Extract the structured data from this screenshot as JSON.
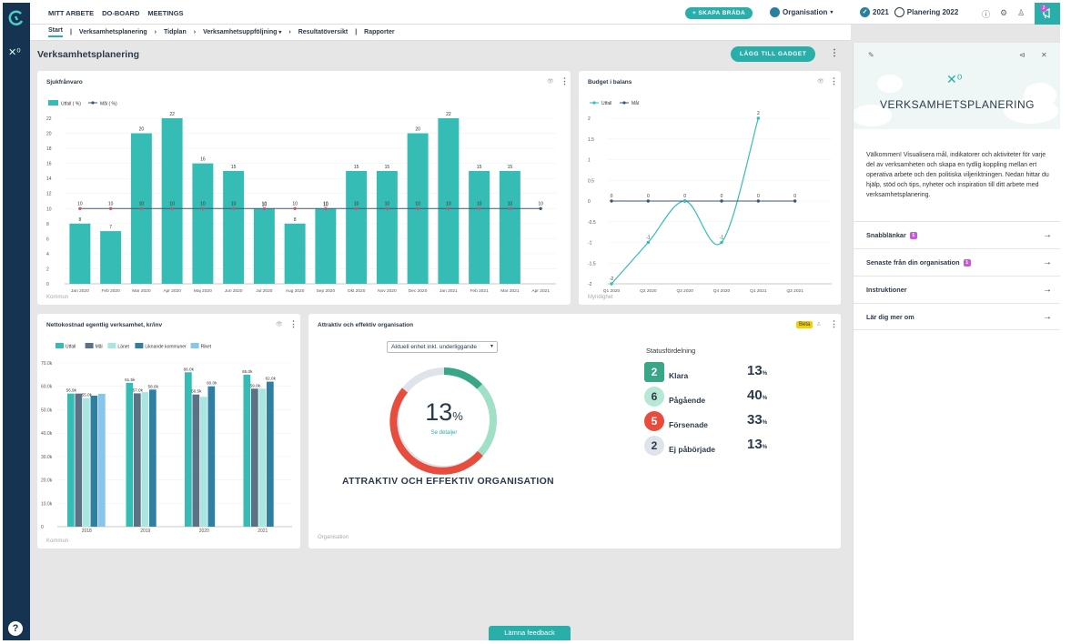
{
  "topnav": {
    "items": [
      "MITT ARBETE",
      "DO-BOARD",
      "MEETINGS"
    ],
    "create_label": "+ SKAPA BRÄDA",
    "org_label": "Organisation",
    "year_label": "2021",
    "plan_label": "Planering 2022",
    "notif_count": "2"
  },
  "subnav": {
    "items": [
      "Start",
      "Verksamhetsplanering",
      "Tidplan",
      "Verksamhetsuppföljning",
      "Resultatöversikt",
      "Rapporter"
    ]
  },
  "page": {
    "title": "Verksamhetsplanering",
    "add_gadget": "LÄGG TILL GADGET"
  },
  "cards": {
    "sick": {
      "title": "Sjukfrånvaro",
      "footer": "Kommun"
    },
    "budget": {
      "title": "Budget i balans",
      "footer": "Myndighet"
    },
    "netto": {
      "title": "Nettokostnad egentlig verksamhet, kr/inv",
      "footer": "Kommun"
    },
    "attractive": {
      "title": "Attraktiv och effektiv organisation",
      "beta": "Beta",
      "dropdown": "Aktuell enhet inkl. underliggande",
      "percent": "13",
      "percent_unit": "%",
      "details": "Se detaljer",
      "heading": "ATTRAKTIV OCH EFFEKTIV ORGANISATION",
      "footer": "Organisation",
      "status_title": "Statusfördelning"
    }
  },
  "status": [
    {
      "count": "2",
      "label": "Klara",
      "value": "13",
      "unit": "%",
      "color": "#3aa688",
      "text_color": "#fff",
      "shape": "square"
    },
    {
      "count": "6",
      "label": "Pågående",
      "value": "40",
      "unit": "%",
      "color": "#b5e8d5",
      "text_color": "#2b3a4a",
      "shape": "circle"
    },
    {
      "count": "5",
      "label": "Försenade",
      "value": "33",
      "unit": "%",
      "color": "#e74c3c",
      "text_color": "#fff",
      "shape": "circle"
    },
    {
      "count": "2",
      "label": "Ej påbörjade",
      "value": "13",
      "unit": "%",
      "color": "#dfe3ea",
      "text_color": "#2b3a4a",
      "shape": "circle"
    }
  ],
  "side": {
    "title": "VERKSAMHETSPLANERING",
    "intro": "Välkommen! Visualisera mål, indikatorer och aktiviteter för varje del av verksamheten och skapa en tydlig koppling mellan ert operativa arbete och den politiska viljeriktningen.  Nedan hittar du hjälp, stöd och tips, nyheter och inspiration till ditt arbete med verksamhetsplanering.",
    "links": [
      {
        "label": "Snabblänkar",
        "badge": "1"
      },
      {
        "label": "Senaste från din organisation",
        "badge": "1"
      },
      {
        "label": "Instruktioner",
        "badge": ""
      },
      {
        "label": "Lär dig mer om",
        "badge": ""
      }
    ]
  },
  "feedback": "Lämna feedback",
  "colors": {
    "accent": "#2aaeaa",
    "navy": "#163452",
    "teal_bar": "#35bdb5"
  },
  "chart_data": [
    {
      "type": "bar",
      "title": "Sjukfrånvaro",
      "categories": [
        "Jan 2020",
        "Feb 2020",
        "Mar 2020",
        "Apr 2020",
        "Maj 2020",
        "Jun 2020",
        "Jul 2020",
        "Aug 2020",
        "Sep 2020",
        "Okt 2020",
        "Nov 2020",
        "Dec 2020",
        "Jan 2021",
        "Feb 2021",
        "Mar 2021",
        "Apr 2021"
      ],
      "series": [
        {
          "name": "Utfall ( %)",
          "values": [
            8,
            7,
            20,
            22,
            16,
            15,
            10,
            8,
            10,
            15,
            15,
            20,
            22,
            15,
            15,
            null
          ]
        },
        {
          "name": "Mål ( %)",
          "values": [
            10,
            10,
            10,
            10,
            10,
            10,
            10,
            10,
            10,
            10,
            10,
            10,
            10,
            10,
            10,
            10
          ]
        }
      ],
      "ylim": [
        0,
        22
      ],
      "yticks": [
        0,
        2,
        4,
        6,
        8,
        10,
        12,
        14,
        16,
        18,
        20,
        22
      ],
      "legend": "top-left"
    },
    {
      "type": "line",
      "title": "Budget i balans",
      "categories": [
        "Q1 2020",
        "Q2 2020",
        "Q3 2020",
        "Q4 2020",
        "Q1 2021",
        "Q2 2021"
      ],
      "series": [
        {
          "name": "Utfall",
          "values": [
            -2,
            -1,
            0,
            -1,
            2,
            null
          ]
        },
        {
          "name": "Mål",
          "values": [
            0,
            0,
            0,
            0,
            0,
            0
          ]
        }
      ],
      "ylim": [
        -2,
        2
      ],
      "yticks": [
        -2,
        -1.5,
        -1,
        -0.5,
        0,
        0.5,
        1,
        1.5,
        2
      ],
      "legend": "top-left"
    },
    {
      "type": "bar",
      "title": "Nettokostnad egentlig verksamhet, kr/inv",
      "categories": [
        "2018",
        "2019",
        "2020",
        "2021"
      ],
      "series": [
        {
          "name": "Utfall",
          "values": [
            56.9,
            61.5,
            66.0,
            65.0
          ]
        },
        {
          "name": "Mål",
          "values": [
            56.9,
            57.0,
            56.5,
            59.0
          ]
        },
        {
          "name": "Länet",
          "values": [
            55.0,
            57.5,
            55.5,
            59.0
          ]
        },
        {
          "name": "Liknande kommuner",
          "values": [
            56.0,
            58.6,
            60.0,
            62.0
          ]
        },
        {
          "name": "Riket",
          "values": [
            56.8,
            null,
            null,
            null
          ]
        }
      ],
      "data_labels": [
        [
          "56.9k",
          null,
          "55.0k",
          null,
          null
        ],
        [
          "61.5k",
          "57.0k",
          null,
          "58.6k",
          null
        ],
        [
          "66.0k",
          "56.5k",
          null,
          "60.0k",
          null
        ],
        [
          "65.0k",
          "59.0k",
          null,
          "62.0k",
          null
        ]
      ],
      "ylim": [
        0,
        70
      ],
      "yticks": [
        "0",
        "10.0k",
        "20.0k",
        "30.0k",
        "40.0k",
        "50.0k",
        "60.0k",
        "70.0k"
      ],
      "legend": "top"
    }
  ]
}
